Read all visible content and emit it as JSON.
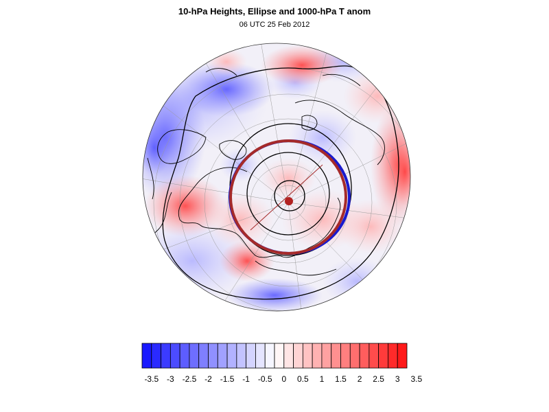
{
  "header": {
    "title": "10-hPa Heights, Ellipse and 1000-hPa T anom",
    "subtitle": "06 UTC 25 Feb 2012"
  },
  "map": {
    "projection": "orthographic north polar",
    "fill_field": "1000-hPa T anom",
    "contour_field": "10-hPa Heights",
    "contour_color": "#000000",
    "ellipse_colors": [
      "#1a1acc",
      "#a52a2a"
    ],
    "vortex_center_color": "#b22222"
  },
  "colorbar": {
    "min_color": "#1010ff",
    "mid_color": "#ffffff",
    "max_color": "#ff1010",
    "tick_labels": [
      "-3.5",
      "-3",
      "-2.5",
      "-2",
      "-1.5",
      "-1",
      "-0.5",
      "0",
      "0.5",
      "1",
      "1.5",
      "2",
      "2.5",
      "3",
      "3.5"
    ]
  }
}
